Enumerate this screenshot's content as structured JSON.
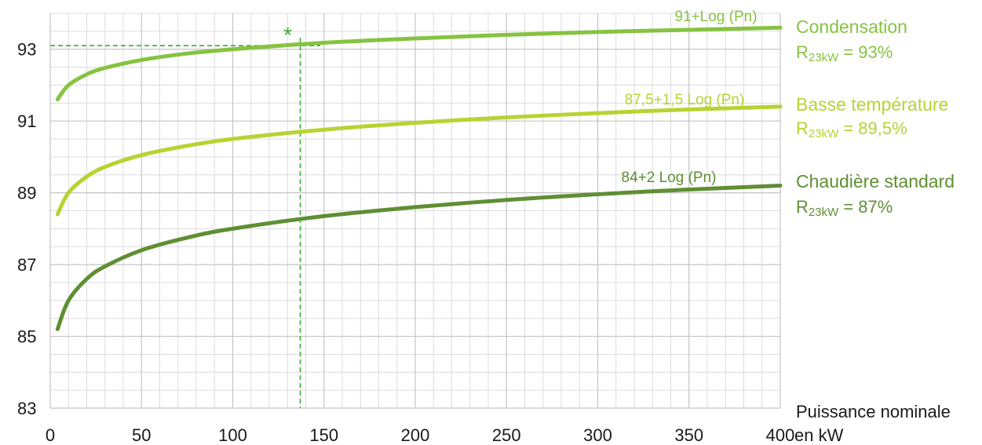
{
  "chart_data": {
    "type": "line",
    "x_ticks": [
      0,
      50,
      100,
      150,
      200,
      250,
      300,
      350,
      400
    ],
    "y_ticks": [
      83,
      85,
      87,
      89,
      91,
      93
    ],
    "xlim": [
      0,
      400
    ],
    "ylim": [
      83,
      94
    ],
    "xlabel_line1": "Puissance nominale",
    "xlabel_line2": "en kW",
    "grid": true,
    "x": [
      4,
      10,
      20,
      30,
      50,
      75,
      100,
      150,
      200,
      250,
      300,
      350,
      400
    ],
    "series": [
      {
        "formula": "91+Log (Pn)",
        "color": "#86c341",
        "values": [
          91.6,
          92.0,
          92.3,
          92.48,
          92.7,
          92.88,
          93.0,
          93.18,
          93.3,
          93.4,
          93.48,
          93.54,
          93.6
        ],
        "legend_title": "Condensation",
        "legend_r": "R",
        "legend_sub": "23kW",
        "legend_value": " = 93%"
      },
      {
        "formula": "87,5+1,5 Log (Pn)",
        "color": "#b9d233",
        "values": [
          88.4,
          89.0,
          89.45,
          89.72,
          90.05,
          90.31,
          90.5,
          90.76,
          90.95,
          91.1,
          91.22,
          91.32,
          91.4
        ],
        "legend_title": "Basse température",
        "legend_r": "R",
        "legend_sub": "23kW",
        "legend_value": " = 89,5%"
      },
      {
        "formula": "84+2 Log (Pn)",
        "color": "#5e8f33",
        "values": [
          85.2,
          86.0,
          86.6,
          86.95,
          87.4,
          87.75,
          88.0,
          88.35,
          88.6,
          88.8,
          88.96,
          89.09,
          89.2
        ]
      }
    ],
    "legend_extra": {
      "title": "Chaudière standard",
      "r": "R",
      "sub": "23kW",
      "value": " = 87%",
      "color": "#5e8f33"
    },
    "annotation": {
      "marker": "*",
      "x": 137,
      "y": 93.1,
      "color": "#3aaa35"
    }
  }
}
